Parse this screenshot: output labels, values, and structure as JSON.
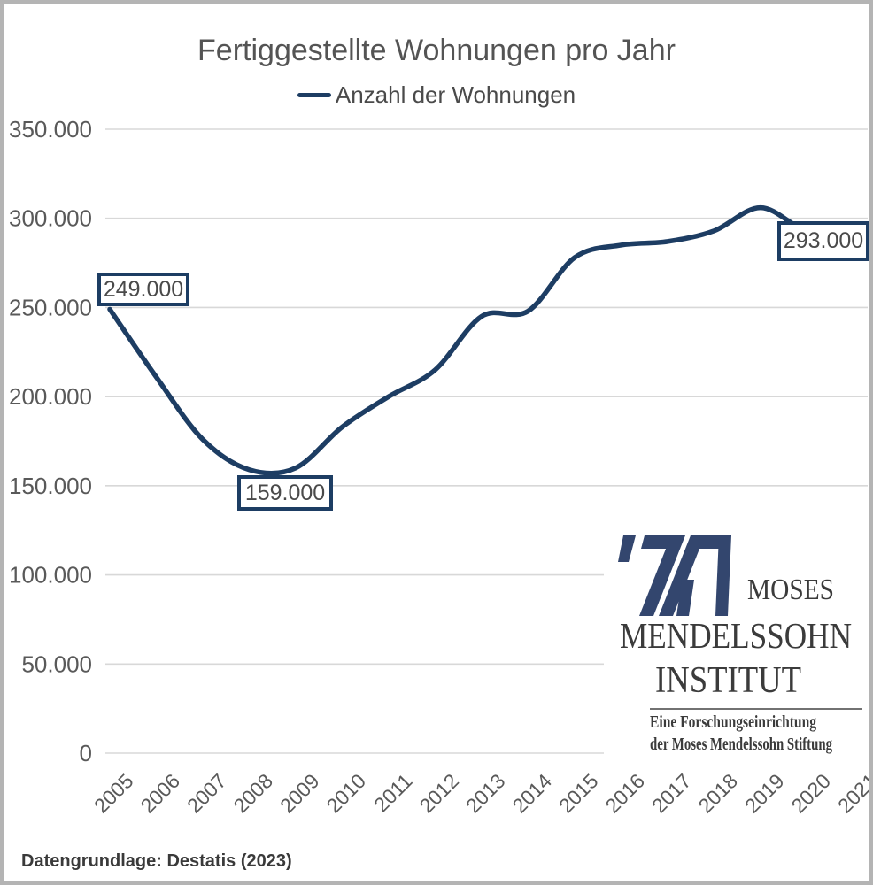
{
  "title": "Fertiggestellte Wohnungen pro Jahr",
  "legend": {
    "label": "Anzahl der Wohnungen",
    "line_color": "#1d3d63"
  },
  "caption": "Datengrundlage: Destatis (2023)",
  "annotations": [
    {
      "text": "249.000",
      "year": 2005
    },
    {
      "text": "159.000",
      "year": 2008
    },
    {
      "text": "293.000",
      "year": 2021
    }
  ],
  "logo": {
    "word1": "MOSES",
    "word2": "MENDELSSOHN",
    "word3": "INSTITUT",
    "subline1": "Eine Forschungseinrichtung",
    "subline2": "der Moses Mendelssohn Stiftung",
    "mark_color": "#33466e"
  },
  "chart_data": {
    "type": "line",
    "title": "Fertiggestellte Wohnungen pro Jahr",
    "series_name": "Anzahl der Wohnungen",
    "categories": [
      2005,
      2006,
      2007,
      2008,
      2009,
      2010,
      2011,
      2012,
      2013,
      2014,
      2015,
      2016,
      2017,
      2018,
      2019,
      2020,
      2021
    ],
    "values": [
      249000,
      211000,
      176000,
      159000,
      160000,
      183000,
      200000,
      215000,
      245000,
      248000,
      278000,
      285000,
      287000,
      293000,
      306000,
      293000,
      293000
    ],
    "xlabel": "",
    "ylabel": "",
    "ylim": [
      0,
      350000
    ],
    "ytick_step": 50000,
    "ytick_labels": [
      "0",
      "50.000",
      "100.000",
      "150.000",
      "200.000",
      "250.000",
      "300.000",
      "350.000"
    ],
    "grid": true,
    "legend_position": "top",
    "line_color": "#1d3d63",
    "grid_color": "#d8d8d8",
    "tick_color": "#595959",
    "number_format": "de-DE"
  }
}
